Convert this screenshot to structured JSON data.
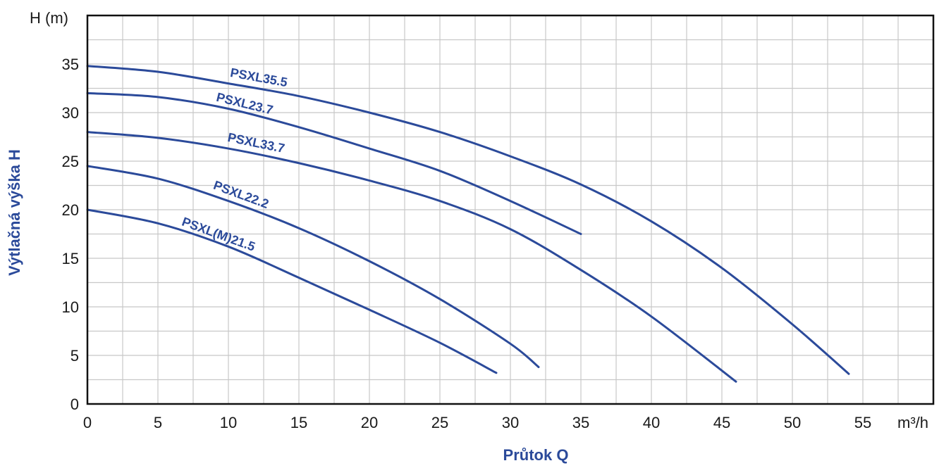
{
  "chart_data": {
    "type": "line",
    "xlabel": "Průtok Q",
    "ylabel": "Výtlačná výška H",
    "x_unit": "m³/h",
    "y_unit": "H (m)",
    "xlim": [
      0,
      60
    ],
    "ylim": [
      0,
      40
    ],
    "x_ticks": [
      "0",
      "5",
      "10",
      "15",
      "20",
      "25",
      "30",
      "35",
      "40",
      "45",
      "50",
      "55"
    ],
    "y_ticks": [
      "0",
      "5",
      "10",
      "15",
      "20",
      "25",
      "30",
      "35"
    ],
    "grid": true,
    "colors": {
      "series": "#2b4a9a",
      "label": "#2b4a9a",
      "grid": "#c8c8c8",
      "axis": "#111111"
    },
    "series": [
      {
        "name": "PSXL35.5",
        "x": [
          0,
          5,
          10,
          15,
          20,
          25,
          30,
          35,
          40,
          45,
          50,
          54
        ],
        "y": [
          34.8,
          34.2,
          33.0,
          31.7,
          30.0,
          28.0,
          25.5,
          22.6,
          18.8,
          14.0,
          8.2,
          3.1
        ]
      },
      {
        "name": "PSXL23.7",
        "x": [
          0,
          5,
          10,
          15,
          20,
          25,
          30,
          35
        ],
        "y": [
          32.0,
          31.6,
          30.4,
          28.5,
          26.3,
          24.0,
          20.9,
          17.5
        ]
      },
      {
        "name": "PSXL33.7",
        "x": [
          0,
          5,
          10,
          15,
          20,
          25,
          30,
          35,
          40,
          46
        ],
        "y": [
          28.0,
          27.4,
          26.3,
          24.8,
          23.0,
          20.9,
          18.0,
          13.8,
          9.0,
          2.3
        ]
      },
      {
        "name": "PSXL22.2",
        "x": [
          0,
          5,
          10,
          15,
          20,
          25,
          30,
          32
        ],
        "y": [
          24.5,
          23.2,
          20.9,
          18.1,
          14.7,
          10.8,
          6.2,
          3.8
        ]
      },
      {
        "name": "PSXL(M)21.5",
        "x": [
          0,
          5,
          10,
          15,
          20,
          25,
          29
        ],
        "y": [
          20.0,
          18.6,
          16.2,
          13.0,
          9.7,
          6.3,
          3.2
        ]
      }
    ]
  }
}
